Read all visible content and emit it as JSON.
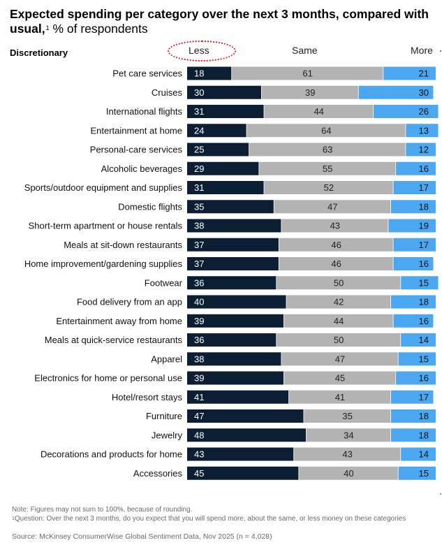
{
  "header": {
    "title_bold": "Expected spending per category over the next 3 months, compared with usual,",
    "title_sup": "1",
    "title_rest": " % of respondents",
    "section_label": "Discretionary"
  },
  "colors": {
    "less": "#0b1e33",
    "same": "#b3b3b3",
    "more": "#4ba8f0",
    "highlight_ring": "#e02020"
  },
  "chart_data": {
    "type": "bar",
    "orientation": "horizontal",
    "stacked": true,
    "series_names": [
      "Less",
      "Same",
      "More"
    ],
    "categories": [
      "Pet care services",
      "Cruises",
      "International flights",
      "Entertainment at home",
      "Personal-care services",
      "Alcoholic beverages",
      "Sports/outdoor equipment and supplies",
      "Domestic flights",
      "Short-term apartment or house rentals",
      "Meals at sit-down restaurants",
      "Home improvement/gardening supplies",
      "Footwear",
      "Food delivery from an app",
      "Entertainment away from home",
      "Meals at quick-service restaurants",
      "Apparel",
      "Electronics for home or personal use",
      "Hotel/resort stays",
      "Furniture",
      "Jewelry",
      "Decorations and products for home",
      "Accessories"
    ],
    "series": [
      {
        "name": "Less",
        "values": [
          18,
          30,
          31,
          24,
          25,
          29,
          31,
          35,
          38,
          37,
          37,
          36,
          40,
          39,
          36,
          38,
          39,
          41,
          47,
          48,
          43,
          45
        ]
      },
      {
        "name": "Same",
        "values": [
          61,
          39,
          44,
          64,
          63,
          55,
          52,
          47,
          43,
          46,
          46,
          50,
          42,
          44,
          50,
          47,
          45,
          41,
          35,
          34,
          43,
          40
        ]
      },
      {
        "name": "More",
        "values": [
          21,
          30,
          26,
          13,
          12,
          16,
          17,
          18,
          19,
          17,
          16,
          15,
          18,
          16,
          14,
          15,
          16,
          17,
          18,
          18,
          14,
          15
        ]
      }
    ],
    "xlim": [
      0,
      100
    ],
    "highlighted_series": "Less"
  },
  "footer": {
    "note": "Note: Figures may not sum to 100%, because of rounding.",
    "footnote_sup": "1",
    "footnote": "Question: Over the next 3 months, do you expect that you will spend more, about the same, or less money on these categories",
    "source": "Source: McKinsey ConsumerWise Global Sentiment Data, Nov 2025 (n = 4,028)"
  }
}
